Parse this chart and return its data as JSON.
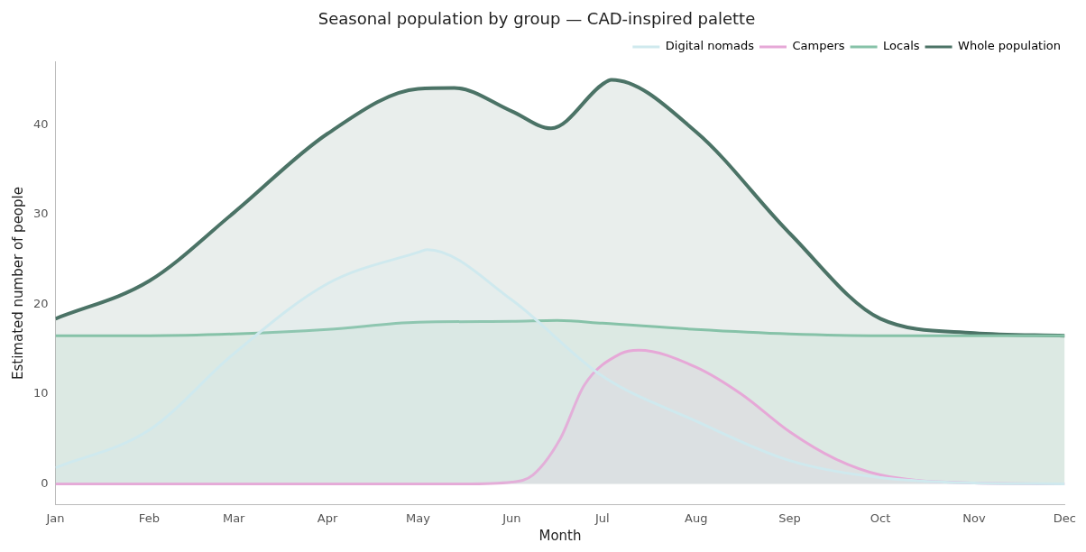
{
  "chart_data": {
    "type": "area",
    "title": "Seasonal population by group — CAD-inspired palette",
    "xlabel": "Month",
    "ylabel": "Estimated number of people",
    "xlim": [
      "--01-01",
      "--12-01"
    ],
    "xticks": [
      {
        "value": "--01-01",
        "label": "Jan"
      },
      {
        "value": "--02-01",
        "label": "Feb"
      },
      {
        "value": "--03-01",
        "label": "Mar"
      },
      {
        "value": "--04-01",
        "label": "Apr"
      },
      {
        "value": "--05-01",
        "label": "May"
      },
      {
        "value": "--06-01",
        "label": "Jun"
      },
      {
        "value": "--07-01",
        "label": "Jul"
      },
      {
        "value": "--08-01",
        "label": "Aug"
      },
      {
        "value": "--09-01",
        "label": "Sep"
      },
      {
        "value": "--10-01",
        "label": "Oct"
      },
      {
        "value": "--11-01",
        "label": "Nov"
      },
      {
        "value": "--12-01",
        "label": "Dec"
      }
    ],
    "ylim": [
      -2.3,
      47
    ],
    "yticks": [
      0,
      10,
      20,
      30,
      40
    ],
    "grid": false,
    "legend": "top right",
    "marker": "none",
    "line_style": "solid",
    "series": [
      {
        "name": "Digital nomads",
        "color": "#cfe9ee",
        "x": [
          "--01-01",
          "--02-01",
          "--03-01",
          "--04-01",
          "--05-01",
          "--05-04",
          "--06-01",
          "--07-01",
          "--08-01",
          "--09-01",
          "--10-01",
          "--11-01",
          "--12-01"
        ],
        "values": [
          1.8,
          6,
          14.5,
          22.3,
          25.8,
          26.1,
          20.5,
          12,
          7,
          2.6,
          0.7,
          0.1,
          0
        ]
      },
      {
        "name": "Campers",
        "color": "#e6a8d7",
        "x": [
          "--01-01",
          "--05-16",
          "--06-01",
          "--06-08",
          "--06-17",
          "--06-25",
          "--07-07",
          "--07-13",
          "--08-01",
          "--08-16",
          "--09-01",
          "--09-16",
          "--10-01",
          "--11-01",
          "--12-01"
        ],
        "values": [
          0,
          0,
          0.2,
          1,
          5,
          11,
          14.5,
          14.9,
          13,
          10,
          5.8,
          2.8,
          1,
          0.1,
          0
        ]
      },
      {
        "name": "Locals",
        "color": "#86c2a8",
        "x": [
          "--01-01",
          "--02-01",
          "--03-01",
          "--04-01",
          "--05-01",
          "--06-01",
          "--06-16",
          "--07-01",
          "--08-01",
          "--09-01",
          "--10-01",
          "--11-01",
          "--12-01"
        ],
        "values": [
          16.5,
          16.5,
          16.7,
          17.2,
          18,
          18.1,
          18.2,
          17.9,
          17.2,
          16.7,
          16.5,
          16.5,
          16.5
        ]
      },
      {
        "name": "Whole population",
        "color": "#4b7366",
        "x": [
          "--01-01",
          "--02-01",
          "--03-01",
          "--04-01",
          "--05-01",
          "--05-13",
          "--06-01",
          "--06-14",
          "--07-01",
          "--07-04",
          "--08-01",
          "--09-01",
          "--10-01",
          "--11-01",
          "--12-01"
        ],
        "values": [
          18.4,
          22.6,
          30.2,
          39,
          44,
          44.1,
          41.5,
          39.6,
          44.5,
          45,
          39.2,
          27.9,
          18.4,
          16.8,
          16.5
        ]
      }
    ]
  }
}
